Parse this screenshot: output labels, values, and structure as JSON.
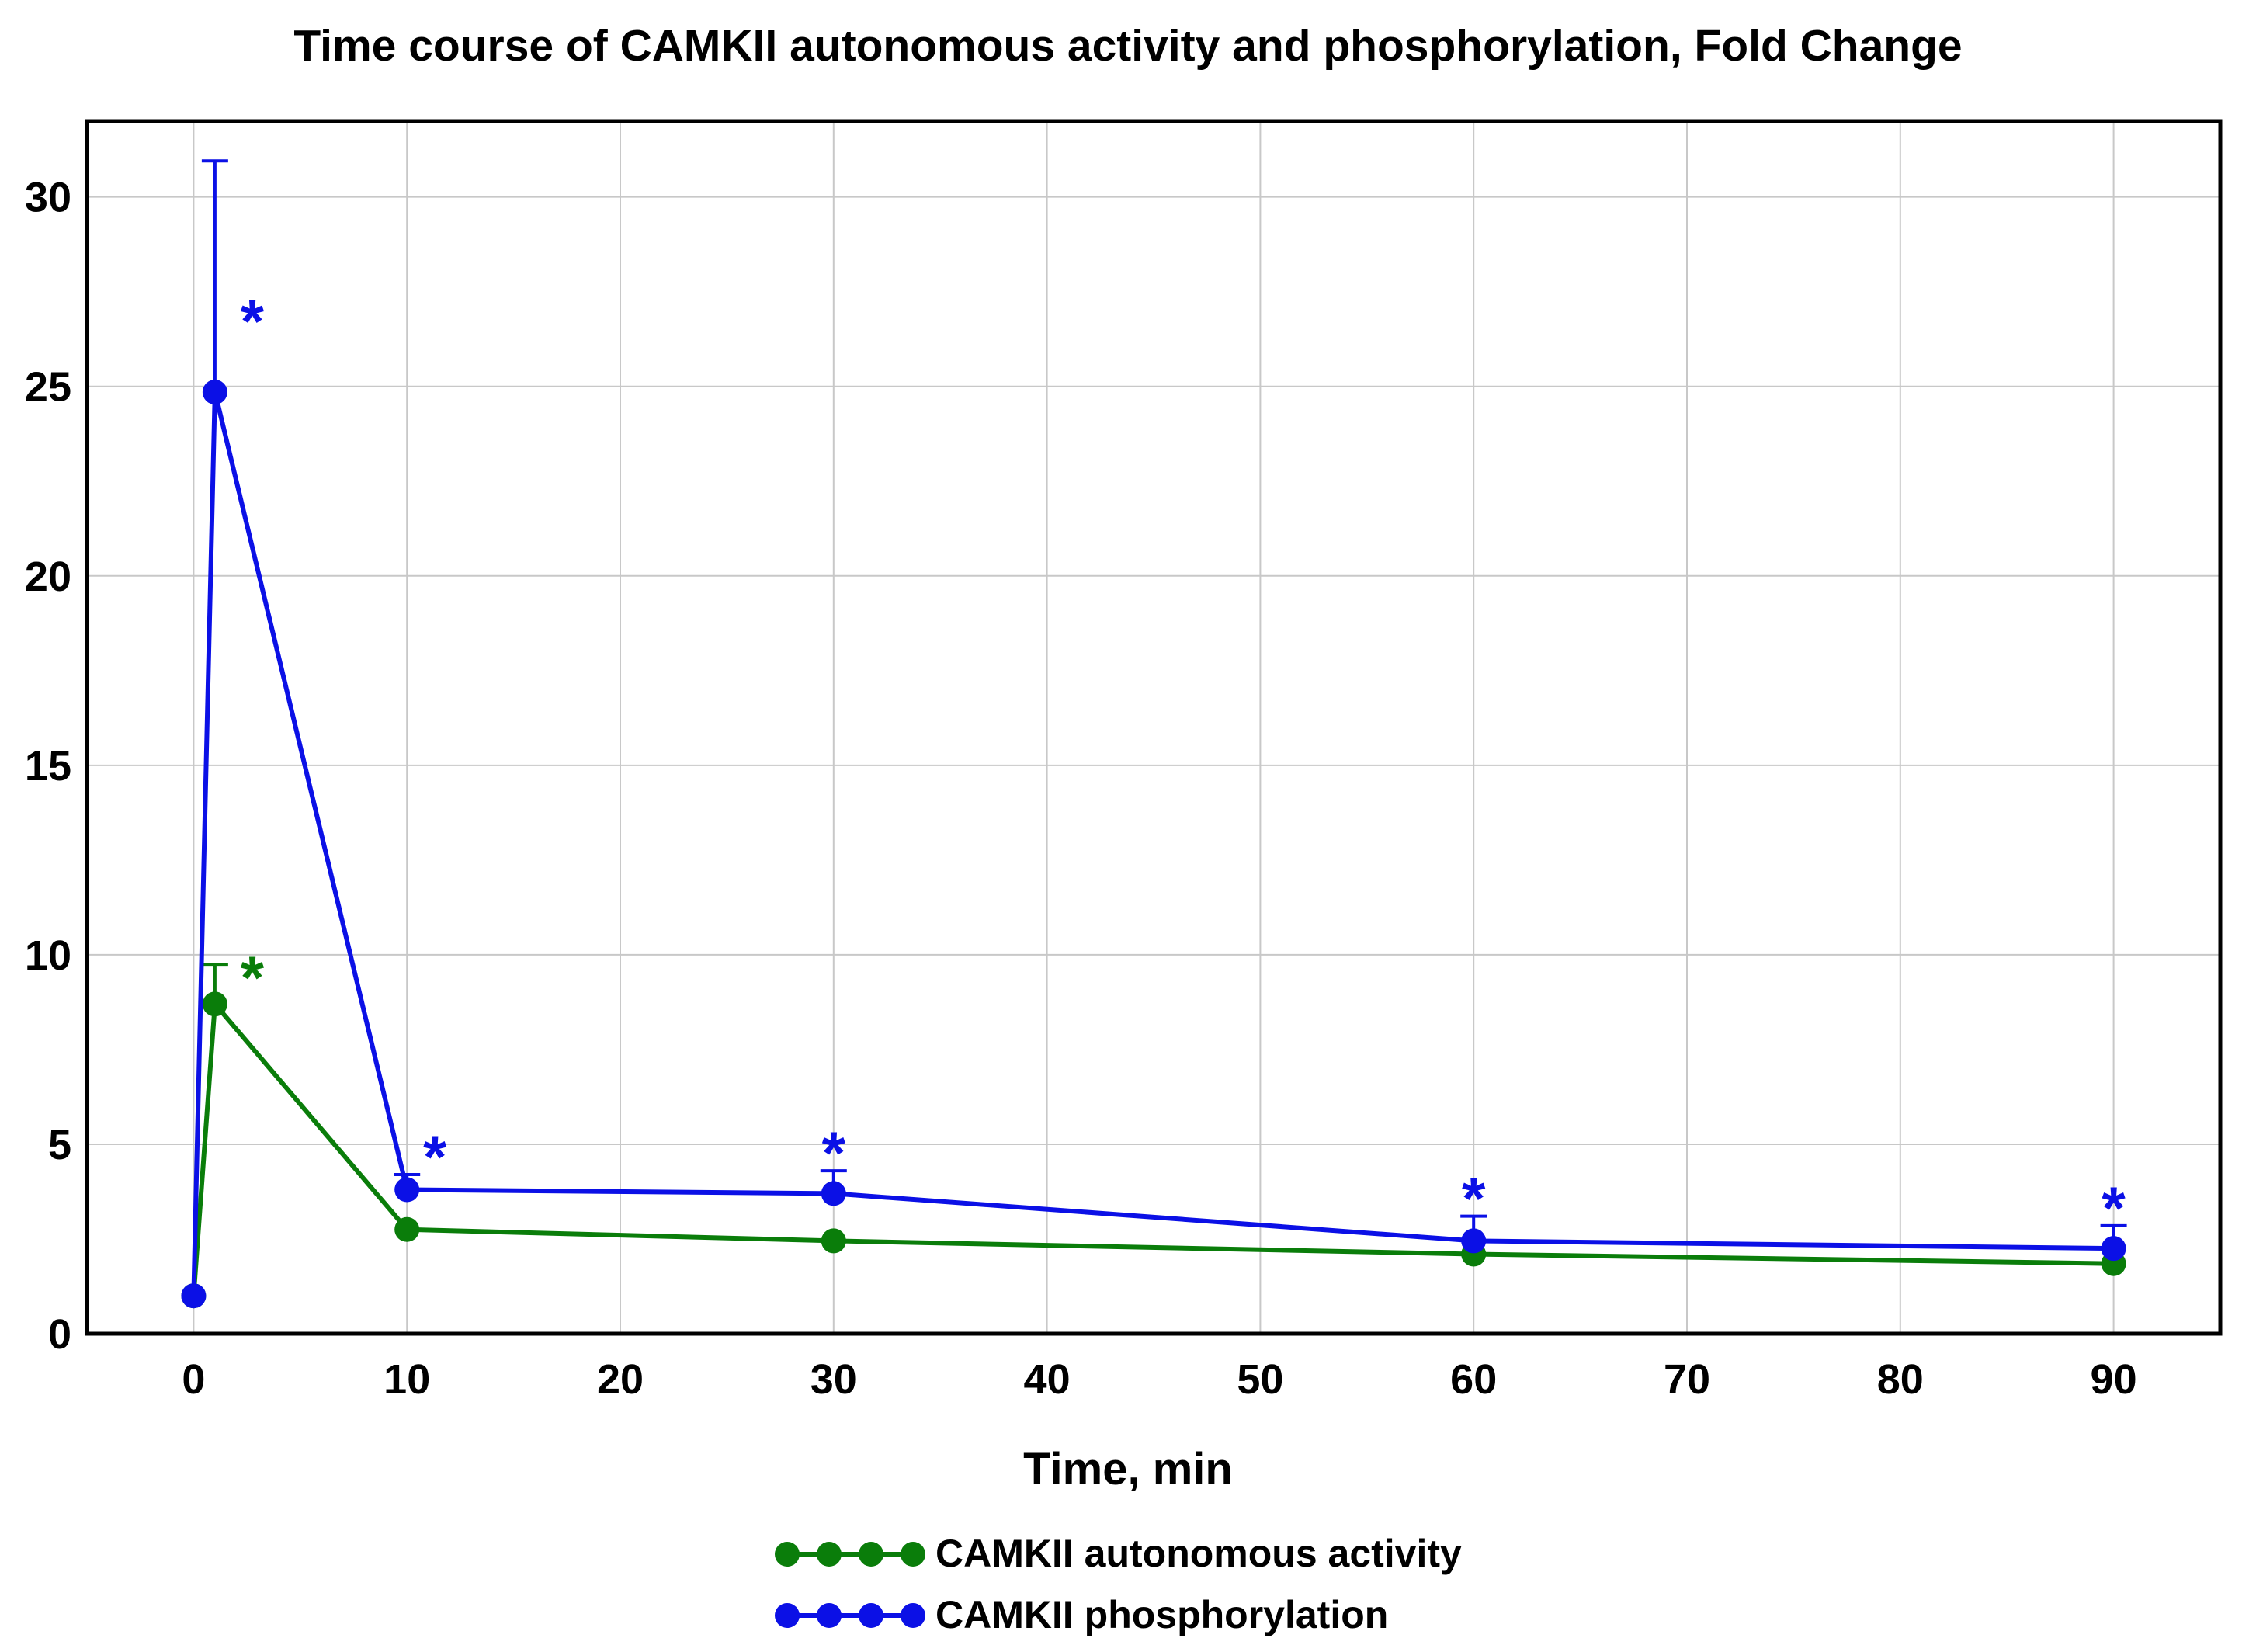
{
  "chart_data": {
    "type": "line",
    "title": "Time course of CAMKII autonomous activity and phosphorylation, Fold Change",
    "xlabel": "Time, min",
    "ylabel": "",
    "xlim": [
      -5,
      95
    ],
    "ylim": [
      0,
      32
    ],
    "xticks": [
      0,
      10,
      20,
      30,
      40,
      50,
      60,
      70,
      80,
      90
    ],
    "yticks": [
      0,
      5,
      10,
      15,
      20,
      25,
      30
    ],
    "grid": true,
    "legend_position": "bottom-center",
    "series": [
      {
        "name": "CAMKII autonomous activity",
        "color": "#0a7d0a",
        "x": [
          0,
          1,
          10,
          30,
          60,
          90
        ],
        "y": [
          1.0,
          8.7,
          2.75,
          2.45,
          2.1,
          1.85
        ],
        "error_upper": [
          null,
          9.75,
          null,
          null,
          null,
          null
        ],
        "significance": [
          "",
          "*",
          "",
          "",
          "",
          ""
        ]
      },
      {
        "name": "CAMKII phosphorylation",
        "color": "#0b10e6",
        "x": [
          0,
          1,
          10,
          30,
          60,
          90
        ],
        "y": [
          1.0,
          24.85,
          3.8,
          3.7,
          2.45,
          2.25
        ],
        "error_upper": [
          null,
          30.95,
          4.2,
          4.3,
          3.1,
          2.85
        ],
        "significance": [
          "",
          "*",
          "*",
          "*",
          "*",
          "*"
        ]
      }
    ]
  }
}
